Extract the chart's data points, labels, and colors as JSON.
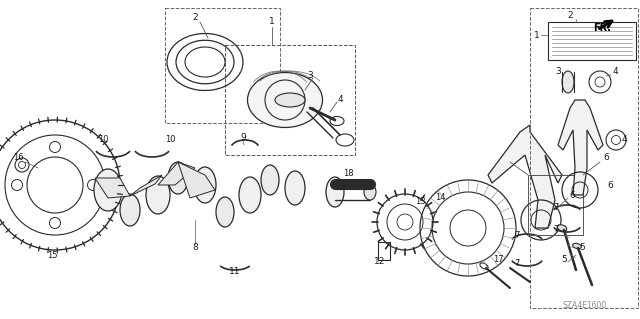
{
  "background_color": "#ffffff",
  "part_number_text": "SZA4E1600",
  "line_color": "#2a2a2a",
  "text_color": "#1a1a1a",
  "gray": "#888888",
  "lightgray": "#cccccc",
  "darkgray": "#555555"
}
